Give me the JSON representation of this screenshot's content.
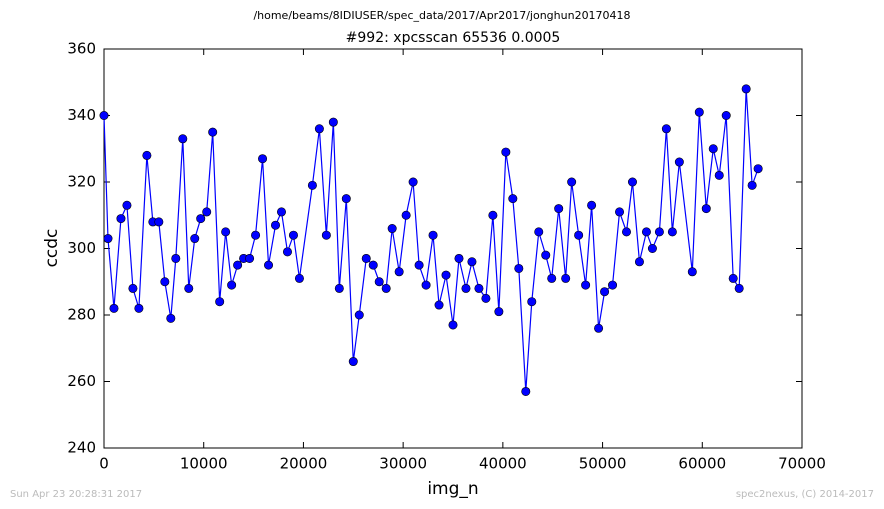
{
  "chart_data": {
    "type": "line",
    "header": "/home/beams/8IDIUSER/spec_data/2017/Apr2017/jonghun20170418",
    "title": "#992: xpcsscan 65536 0.0005",
    "x_label": "img_n",
    "y_label": "ccdc",
    "footer_left": "Sun Apr 23 20:28:31 2017",
    "footer_right": "spec2nexus, (C) 2014-2017",
    "color": "#0000ff",
    "grid": false,
    "xlim": [
      0,
      70000
    ],
    "xticks": [
      0,
      10000,
      20000,
      30000,
      40000,
      50000,
      60000,
      70000
    ],
    "ylim": [
      240,
      360
    ],
    "yticks": [
      240,
      260,
      280,
      300,
      320,
      340,
      360
    ],
    "x": [
      0,
      400,
      1000,
      1700,
      2300,
      2900,
      3500,
      4300,
      4900,
      5500,
      6100,
      6700,
      7200,
      7900,
      8500,
      9100,
      9700,
      10300,
      10900,
      11600,
      12200,
      12800,
      13400,
      14000,
      14600,
      15200,
      15900,
      16500,
      17200,
      17800,
      18400,
      19000,
      19600,
      20900,
      21600,
      22300,
      23000,
      23600,
      24300,
      25000,
      25600,
      26300,
      27000,
      27600,
      28300,
      28900,
      29600,
      30300,
      31000,
      31600,
      32300,
      33000,
      33600,
      34300,
      35000,
      35600,
      36300,
      36900,
      37600,
      38300,
      39000,
      39600,
      40300,
      41000,
      41600,
      42300,
      42900,
      43600,
      44300,
      44900,
      45600,
      46300,
      46900,
      47600,
      48300,
      48900,
      49600,
      50200,
      51000,
      51700,
      52400,
      53000,
      53700,
      54400,
      55000,
      55700,
      56400,
      57000,
      57700,
      59000,
      59700,
      60400,
      61100,
      61700,
      62400,
      63100,
      63700,
      64400,
      65000,
      65600
    ],
    "values": [
      340,
      303,
      282,
      309,
      313,
      288,
      282,
      328,
      308,
      308,
      290,
      279,
      297,
      333,
      288,
      303,
      309,
      311,
      335,
      284,
      305,
      289,
      295,
      297,
      297,
      304,
      327,
      295,
      307,
      311,
      299,
      304,
      291,
      319,
      336,
      304,
      338,
      288,
      315,
      266,
      280,
      297,
      295,
      290,
      288,
      306,
      293,
      310,
      320,
      295,
      289,
      304,
      283,
      292,
      277,
      297,
      288,
      296,
      288,
      285,
      310,
      281,
      329,
      315,
      294,
      257,
      284,
      305,
      298,
      291,
      312,
      291,
      320,
      304,
      289,
      313,
      276,
      287,
      289,
      311,
      305,
      320,
      296,
      305,
      300,
      305,
      336,
      305,
      326,
      293,
      341,
      312,
      330,
      322,
      340,
      291,
      288,
      348,
      319,
      324
    ]
  }
}
